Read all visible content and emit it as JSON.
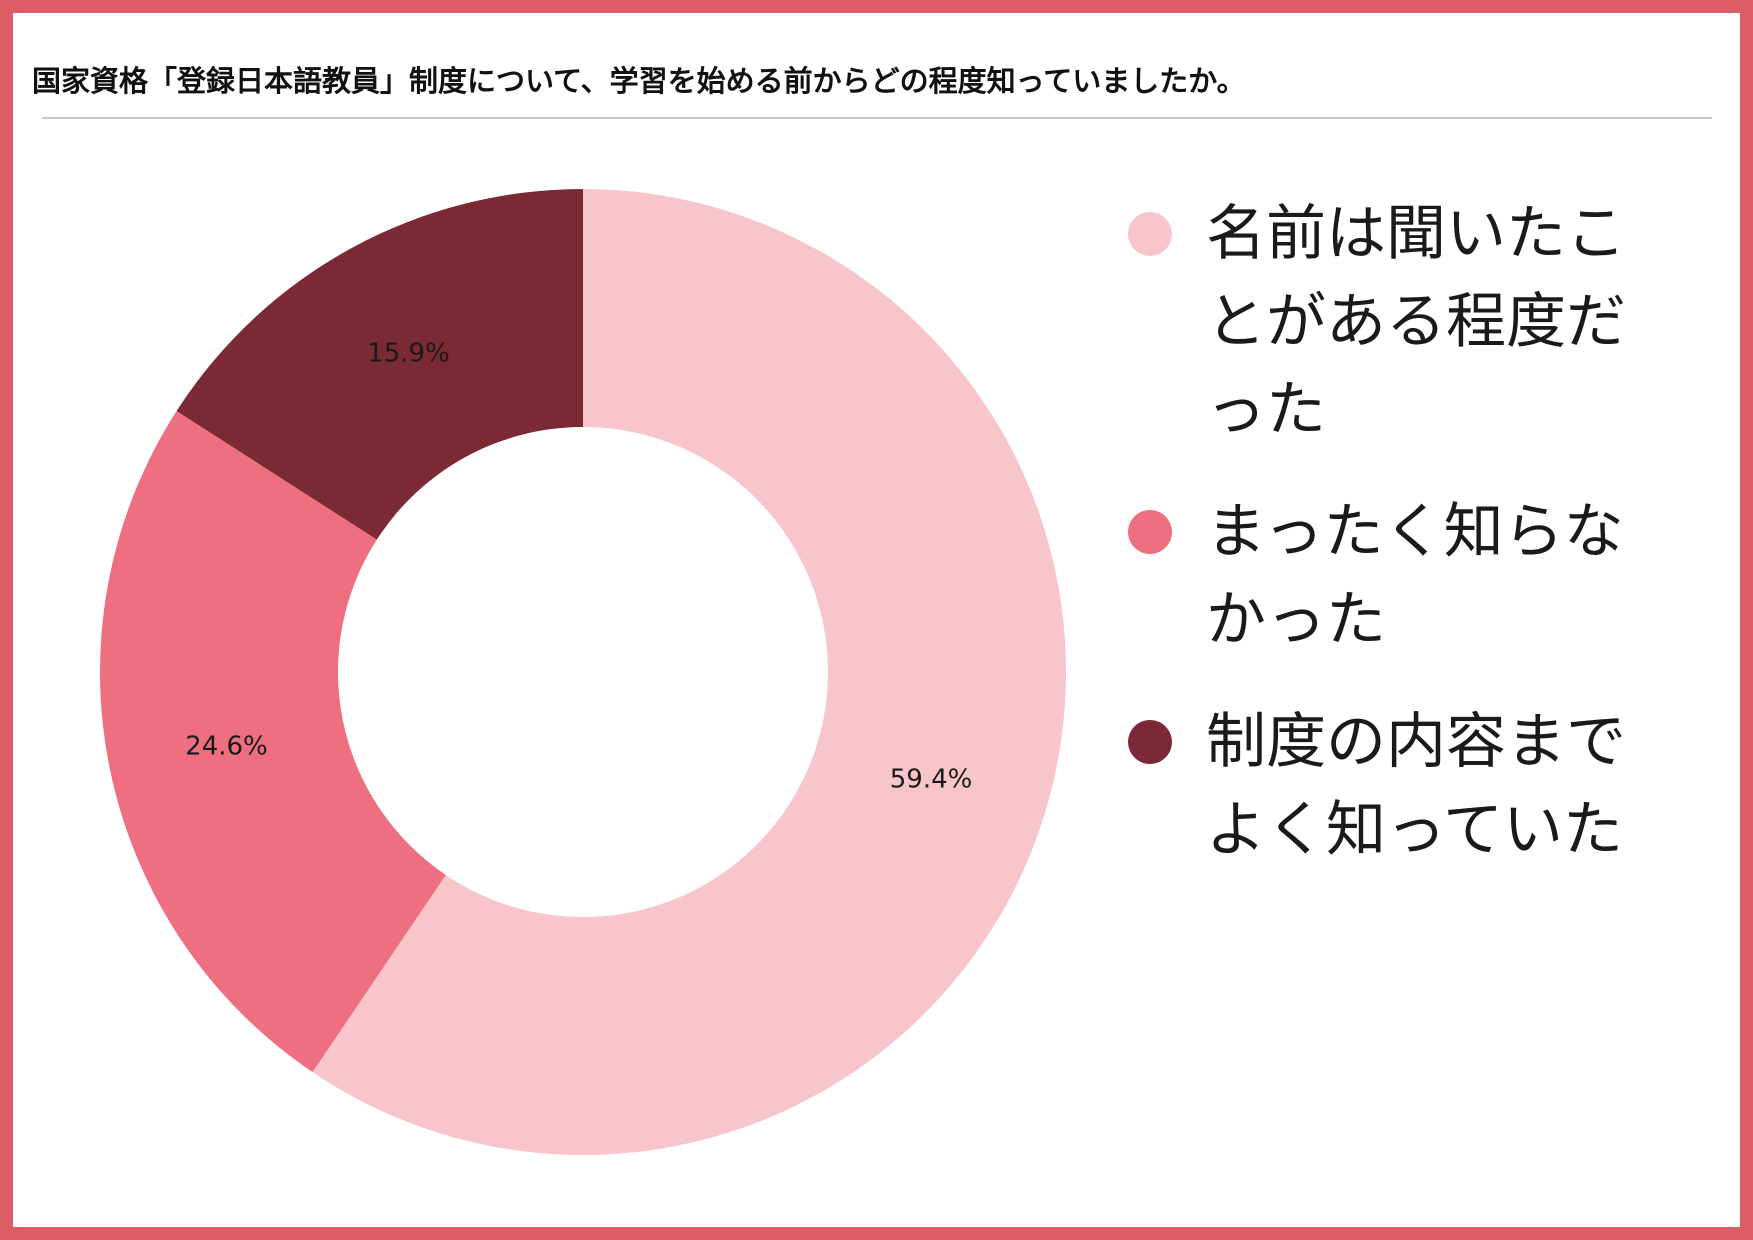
{
  "title": "国家資格「登録日本語教員」制度について、学習を始める前からどの程度知っていましたか。",
  "colors": {
    "frame": "#dc5d66",
    "slice_1": "#f8c5cd",
    "slice_2": "#ee6f7f",
    "slice_3": "#7b2a35"
  },
  "chart_data": {
    "type": "pie",
    "donut": true,
    "labels": [
      "名前は聞いたことがある程度だった",
      "まったく知らなかった",
      "制度の内容までよく知っていた"
    ],
    "values": [
      59.4,
      24.6,
      15.9
    ],
    "value_labels": [
      "59.4%",
      "24.6%",
      "15.9%"
    ],
    "colors": [
      "#f8c5cd",
      "#ee6f7f",
      "#7b2a35"
    ],
    "legend_position": "right"
  }
}
